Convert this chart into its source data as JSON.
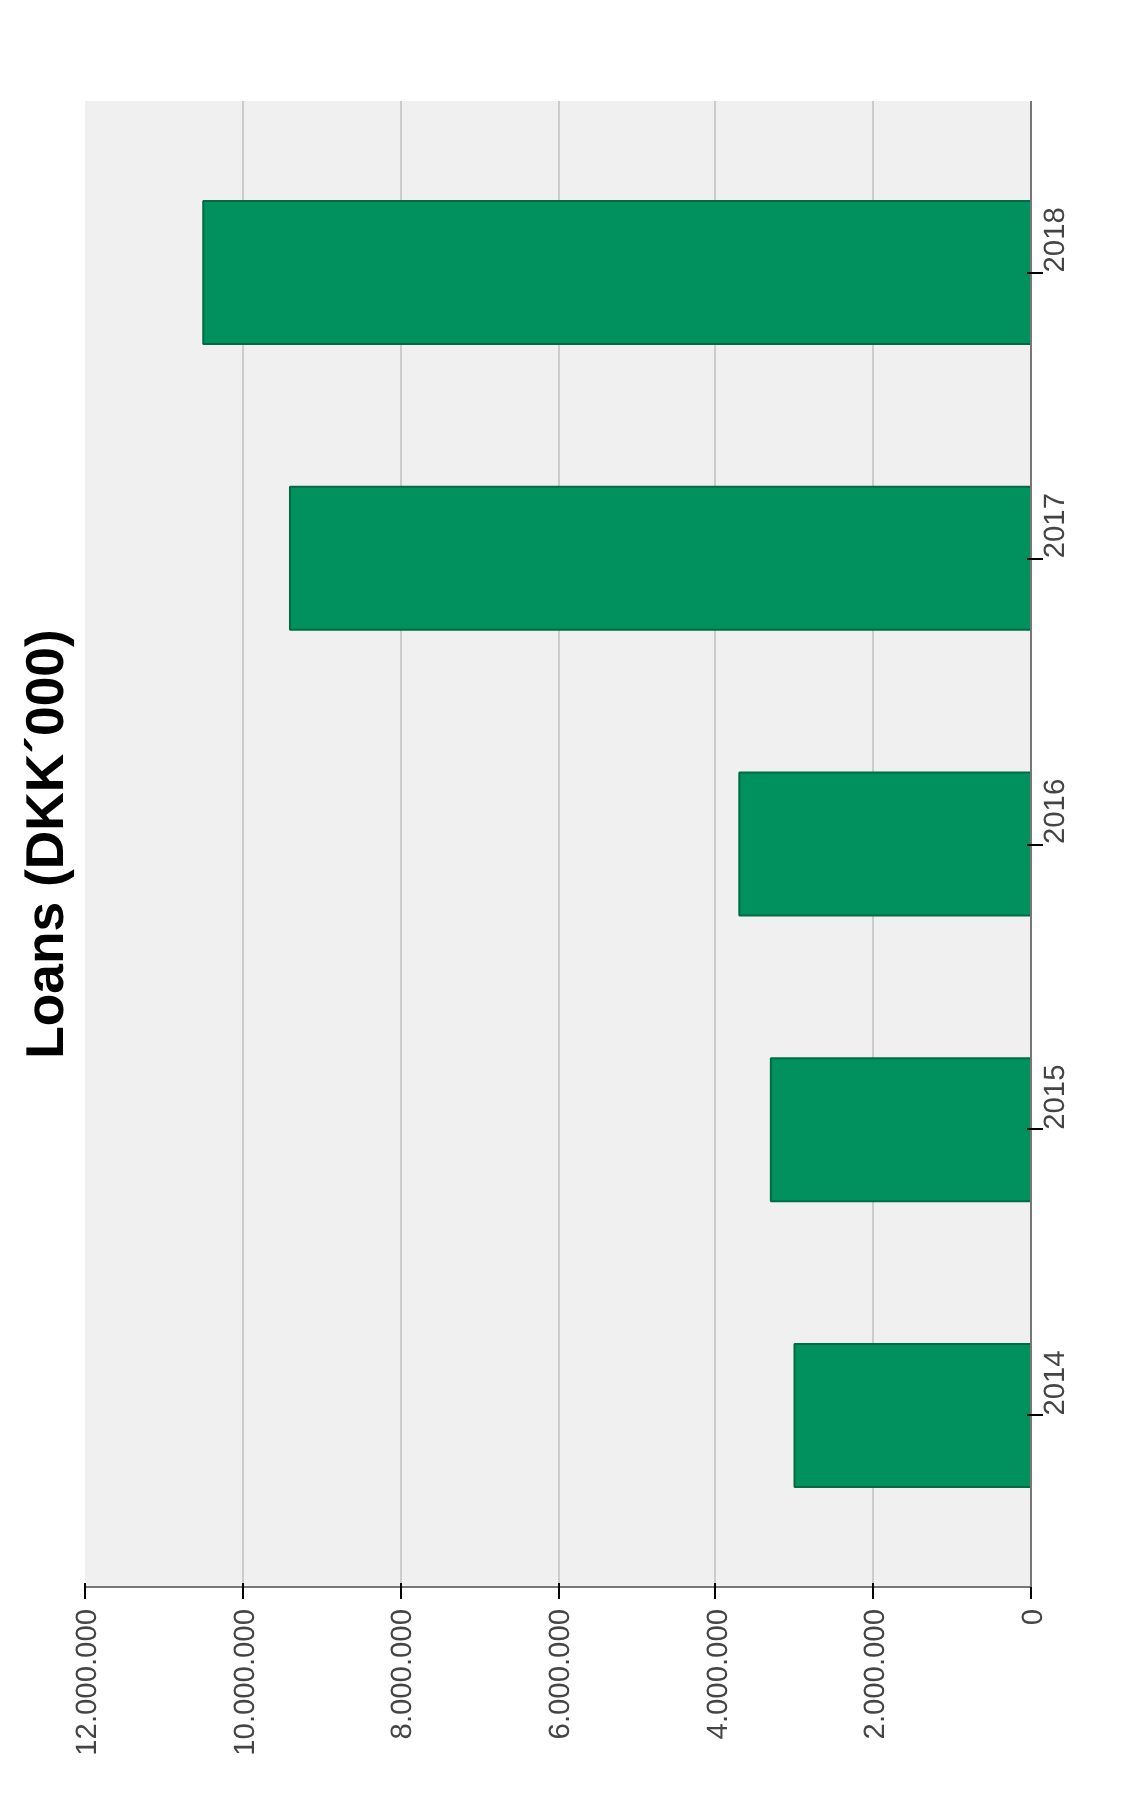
{
  "chart_data": {
    "type": "bar",
    "orientation": "horizontal",
    "title": "Loans (DKK´000)",
    "categories": [
      "2018",
      "2017",
      "2016",
      "2015",
      "2014"
    ],
    "values": [
      10500000,
      9400000,
      3700000,
      3300000,
      3000000
    ],
    "color": "#00915e",
    "xlim": [
      12000000,
      0
    ],
    "xticks": [
      {
        "value": 12000000,
        "label": "12.000.000"
      },
      {
        "value": 10000000,
        "label": "10.000.000"
      },
      {
        "value": 8000000,
        "label": "8.000.000"
      },
      {
        "value": 6000000,
        "label": "6.000.000"
      },
      {
        "value": 4000000,
        "label": "4.000.000"
      },
      {
        "value": 2000000,
        "label": "2.000.000"
      },
      0
    ],
    "grid": "x"
  }
}
